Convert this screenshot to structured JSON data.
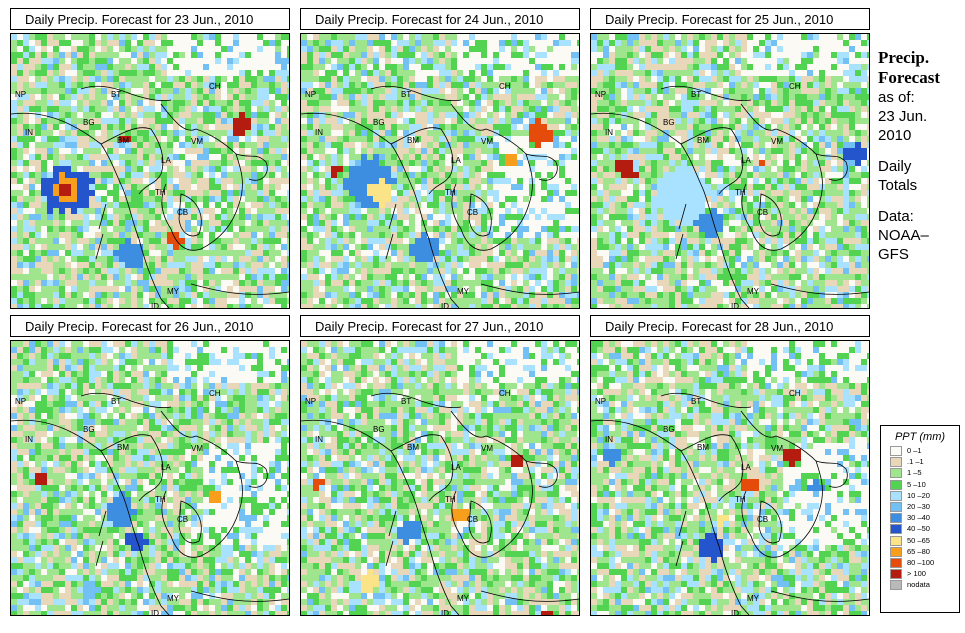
{
  "title_prefix": "Daily Precip. Forecast for",
  "panels": [
    {
      "date": "23 Jun., 2010",
      "title": "Daily Precip. Forecast for  23 Jun., 2010"
    },
    {
      "date": "24 Jun., 2010",
      "title": "Daily Precip. Forecast for  24 Jun., 2010"
    },
    {
      "date": "25 Jun., 2010",
      "title": "Daily Precip. Forecast for  25 Jun., 2010"
    },
    {
      "date": "26 Jun., 2010",
      "title": "Daily Precip. Forecast for  26 Jun., 2010"
    },
    {
      "date": "27 Jun., 2010",
      "title": "Daily Precip. Forecast for  27 Jun., 2010"
    },
    {
      "date": "28 Jun., 2010",
      "title": "Daily Precip. Forecast for  28 Jun., 2010"
    }
  ],
  "map_labels": {
    "np": "NP",
    "bt": "BT",
    "ch": "CH",
    "in": "IN",
    "bg": "BG",
    "bm": "BM",
    "vm": "VM",
    "la": "LA",
    "th": "TH",
    "cb": "CB",
    "my": "MY",
    "id": "ID"
  },
  "sidebar": {
    "heading1": "Precip.",
    "heading2": "Forecast",
    "asof": "as of:",
    "date1": "23 Jun.",
    "date2": "2010",
    "daily1": "Daily",
    "daily2": "Totals",
    "data1": "Data:",
    "data2": "NOAA–",
    "data3": "GFS"
  },
  "legend": {
    "title": "PPT (mm)",
    "items": [
      {
        "label": "0 –1",
        "color": "#fbfaf5"
      },
      {
        "label": ".1 –1",
        "color": "#e8d7b8"
      },
      {
        "label": "1 –5",
        "color": "#9ee58e"
      },
      {
        "label": "5 –10",
        "color": "#52d452"
      },
      {
        "label": "10 –20",
        "color": "#a9e2ff"
      },
      {
        "label": "20 –30",
        "color": "#72c0f4"
      },
      {
        "label": "30 –40",
        "color": "#3d8ee0"
      },
      {
        "label": "40 –50",
        "color": "#2455cc"
      },
      {
        "label": "50 –65",
        "color": "#fbe487"
      },
      {
        "label": "65 –80",
        "color": "#f79f1c"
      },
      {
        "label": "80 –100",
        "color": "#e54b0b"
      },
      {
        "label": "> 100",
        "color": "#b31c0e"
      },
      {
        "label": "nodata",
        "color": "#b9b9b9"
      }
    ]
  }
}
